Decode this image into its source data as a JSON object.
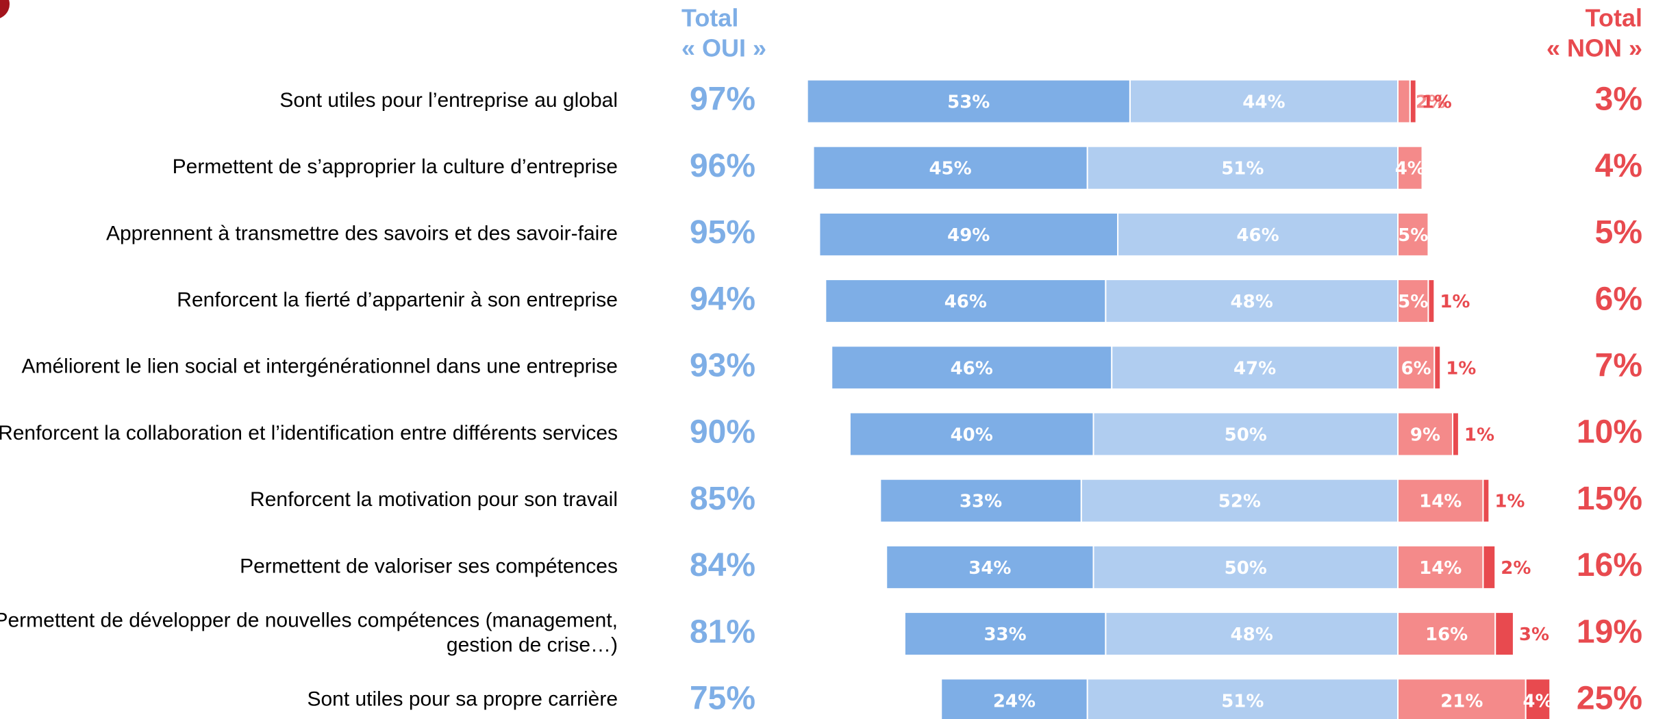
{
  "chart_data": {
    "type": "diverging-bar",
    "header_left": [
      "Total",
      "« OUI »"
    ],
    "header_right": [
      "Total",
      "« NON »"
    ],
    "categories": [
      "Sont utiles pour l’entreprise au global",
      "Permettent de s’approprier la culture d’entreprise",
      "Apprennent à transmettre des savoirs et des savoir-faire",
      "Renforcent la fierté d’appartenir à son entreprise",
      "Améliorent le lien social et intergénérationnel dans une entreprise",
      "Renforcent la collaboration et l’identification entre différents services",
      "Renforcent la motivation pour son travail",
      "Permettent de valoriser ses compétences",
      [
        "Permettent de développer de nouvelles compétences (management,",
        "gestion de crise…)"
      ],
      "Sont utiles pour sa propre carrière"
    ],
    "total_left": {
      "color": "#7eaee6",
      "values": [
        97,
        96,
        95,
        94,
        93,
        90,
        85,
        84,
        81,
        75
      ],
      "value_labels": [
        "97%",
        "96%",
        "95%",
        "94%",
        "93%",
        "90%",
        "85%",
        "84%",
        "81%",
        "75%"
      ]
    },
    "total_right": {
      "color": "#e84a4f",
      "values": [
        3,
        4,
        5,
        6,
        7,
        10,
        15,
        16,
        19,
        25
      ],
      "value_labels": [
        "3%",
        "4%",
        "5%",
        "6%",
        "7%",
        "10%",
        "15%",
        "16%",
        "19%",
        "25%"
      ]
    },
    "series": [
      {
        "color": "#7eaee6",
        "side": "left",
        "values": [
          53,
          45,
          49,
          46,
          46,
          40,
          33,
          34,
          33,
          24
        ],
        "value_labels": [
          "53%",
          "45%",
          "49%",
          "46%",
          "46%",
          "40%",
          "33%",
          "34%",
          "33%",
          "24%"
        ]
      },
      {
        "color": "#b0cdf0",
        "side": "left",
        "values": [
          44,
          51,
          46,
          48,
          47,
          50,
          52,
          50,
          48,
          51
        ],
        "value_labels": [
          "44%",
          "51%",
          "46%",
          "48%",
          "47%",
          "50%",
          "52%",
          "50%",
          "48%",
          "51%"
        ]
      },
      {
        "color": "#f48a8a",
        "side": "right",
        "values": [
          2,
          4,
          5,
          5,
          6,
          9,
          14,
          14,
          16,
          21
        ],
        "value_labels": [
          "2%",
          "4%",
          "5%",
          "5%",
          "6%",
          "9%",
          "14%",
          "14%",
          "16%",
          "21%"
        ]
      },
      {
        "color": "#e84a4f",
        "side": "right",
        "values": [
          1,
          null,
          null,
          1,
          1,
          1,
          1,
          2,
          3,
          4
        ],
        "value_labels": [
          "1%",
          null,
          null,
          "1%",
          "1%",
          "1%",
          "1%",
          "2%",
          "3%",
          "4%"
        ]
      }
    ]
  }
}
